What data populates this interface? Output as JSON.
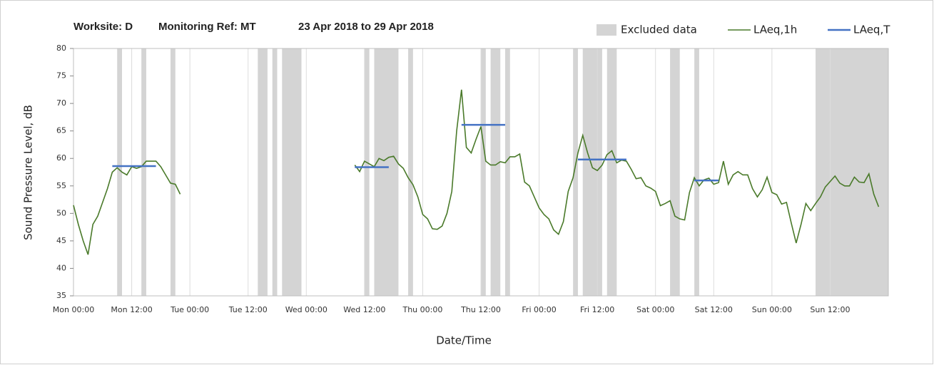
{
  "chart_data": {
    "type": "line",
    "title_parts": [
      "Worksite: D",
      "Monitoring Ref: MT",
      "23 Apr 2018 to 29 Apr 2018"
    ],
    "y_label": "Sound Pressure Level, dB",
    "x_label": "Date/Time",
    "xlim": [
      0,
      168
    ],
    "xticks": [
      {
        "value": 0,
        "label": "Mon 00:00"
      },
      {
        "value": 12,
        "label": "Mon 12:00"
      },
      {
        "value": 24,
        "label": "Tue 00:00"
      },
      {
        "value": 36,
        "label": "Tue 12:00"
      },
      {
        "value": 48,
        "label": "Wed 00:00"
      },
      {
        "value": 60,
        "label": "Wed 12:00"
      },
      {
        "value": 72,
        "label": "Thu 00:00"
      },
      {
        "value": 84,
        "label": "Thu 12:00"
      },
      {
        "value": 96,
        "label": "Fri 00:00"
      },
      {
        "value": 108,
        "label": "Fri 12:00"
      },
      {
        "value": 120,
        "label": "Sat 00:00"
      },
      {
        "value": 132,
        "label": "Sat 12:00"
      },
      {
        "value": 144,
        "label": "Sun 00:00"
      },
      {
        "value": 156,
        "label": "Sun 12:00"
      }
    ],
    "ylim": [
      35,
      80
    ],
    "yticks": [
      35,
      40,
      45,
      50,
      55,
      60,
      65,
      70,
      75,
      80
    ],
    "grid": "x",
    "excluded": {
      "name": "Excluded data",
      "color": "#d4d4d4",
      "bands": [
        [
          9,
          10
        ],
        [
          14,
          15
        ],
        [
          20,
          21
        ],
        [
          38,
          40
        ],
        [
          41,
          42
        ],
        [
          43,
          47
        ],
        [
          60,
          61
        ],
        [
          62,
          67
        ],
        [
          69,
          70
        ],
        [
          84,
          85
        ],
        [
          86,
          88
        ],
        [
          89,
          90
        ],
        [
          103,
          104
        ],
        [
          105,
          109
        ],
        [
          110,
          112
        ],
        [
          123,
          125
        ],
        [
          128,
          129
        ],
        [
          153,
          168
        ]
      ]
    },
    "series": [
      {
        "name": "LAeq,1h",
        "color": "#4a7a2a",
        "x": [
          0,
          1,
          2,
          3,
          4,
          5,
          6,
          7,
          8,
          9,
          10,
          11,
          12,
          13,
          14,
          15,
          16,
          17,
          18,
          19,
          20,
          21,
          22,
          23,
          24,
          25,
          26,
          27,
          28,
          29,
          30,
          31,
          32,
          33,
          34,
          35,
          36,
          37,
          38,
          39,
          40,
          41,
          42,
          43,
          44,
          45,
          46,
          47,
          48,
          49,
          50,
          51,
          52,
          53,
          54,
          55,
          56,
          57,
          58,
          59,
          60,
          61,
          62,
          63,
          64,
          65,
          66,
          67,
          68,
          69,
          70,
          71,
          72,
          73,
          74,
          75,
          76,
          77,
          78,
          79,
          80,
          81,
          82,
          83,
          84,
          85,
          86,
          87,
          88,
          89,
          90,
          91,
          92,
          93,
          94,
          95,
          96,
          97,
          98,
          99,
          100,
          101,
          102,
          103,
          104,
          105,
          106,
          107,
          108,
          109,
          110,
          111,
          112,
          113,
          114,
          115,
          116,
          117,
          118,
          119,
          120,
          121,
          122,
          123,
          124,
          125,
          126,
          127,
          128,
          129,
          130,
          131,
          132,
          133,
          134,
          135,
          136,
          137,
          138,
          139,
          140,
          141,
          142,
          143,
          144,
          145,
          146,
          147,
          148,
          149,
          150,
          151,
          152,
          153,
          154,
          155,
          156,
          157,
          158,
          159,
          160,
          161,
          162,
          163,
          164,
          165,
          166
        ],
        "values": [
          51.5,
          48,
          45,
          42.5,
          48,
          49.5,
          52,
          54.5,
          57.5,
          58.3,
          57.5,
          57,
          58.5,
          58.2,
          58.5,
          59.5,
          59.5,
          59.5,
          58.5,
          57,
          55.5,
          55.3,
          53.5,
          null,
          null,
          null,
          null,
          null,
          null,
          null,
          null,
          null,
          null,
          null,
          null,
          null,
          null,
          null,
          null,
          null,
          null,
          null,
          null,
          null,
          null,
          null,
          null,
          null,
          null,
          null,
          null,
          null,
          null,
          null,
          null,
          null,
          null,
          null,
          58.8,
          57.6,
          59.5,
          59,
          58.5,
          60,
          59.6,
          60.2,
          60.4,
          59,
          58.2,
          56.5,
          55.2,
          53,
          49.8,
          49,
          47.2,
          47.1,
          47.7,
          50,
          54,
          65,
          72.5,
          62,
          61,
          63.5,
          65.8,
          59.5,
          58.8,
          58.8,
          59.4,
          59.2,
          60.3,
          60.3,
          60.8,
          55.7,
          55,
          53,
          51,
          49.8,
          49,
          47,
          46.2,
          48.5,
          54,
          56.5,
          61,
          64.2,
          61,
          58.3,
          57.8,
          58.8,
          60.7,
          61.4,
          59.2,
          59.7,
          59.5,
          58,
          56.3,
          56.5,
          55,
          54.6,
          54,
          51.4,
          51.8,
          52.3,
          49.5,
          49,
          48.8,
          53.8,
          56.5,
          55,
          56.1,
          56.4,
          55.3,
          55.6,
          59.5,
          55.3,
          57,
          57.6,
          57,
          57,
          54.5,
          53,
          54.3,
          56.6,
          53.8,
          53.4,
          51.7,
          52,
          48.2,
          44.6,
          48,
          51.8,
          50.5,
          51.8,
          53,
          54.8,
          55.8,
          56.8,
          55.5,
          55,
          55,
          56.6,
          55.7,
          55.6,
          57.2,
          53.5,
          51.2
        ]
      },
      {
        "name": "LAeq,T",
        "color": "#4472c4",
        "segments": [
          {
            "start": 8,
            "end": 17,
            "value": 58.6
          },
          {
            "start": 58,
            "end": 65,
            "value": 58.4
          },
          {
            "start": 80,
            "end": 89,
            "value": 66.1
          },
          {
            "start": 104,
            "end": 114,
            "value": 59.8
          },
          {
            "start": 128,
            "end": 133,
            "value": 56
          }
        ]
      }
    ]
  }
}
